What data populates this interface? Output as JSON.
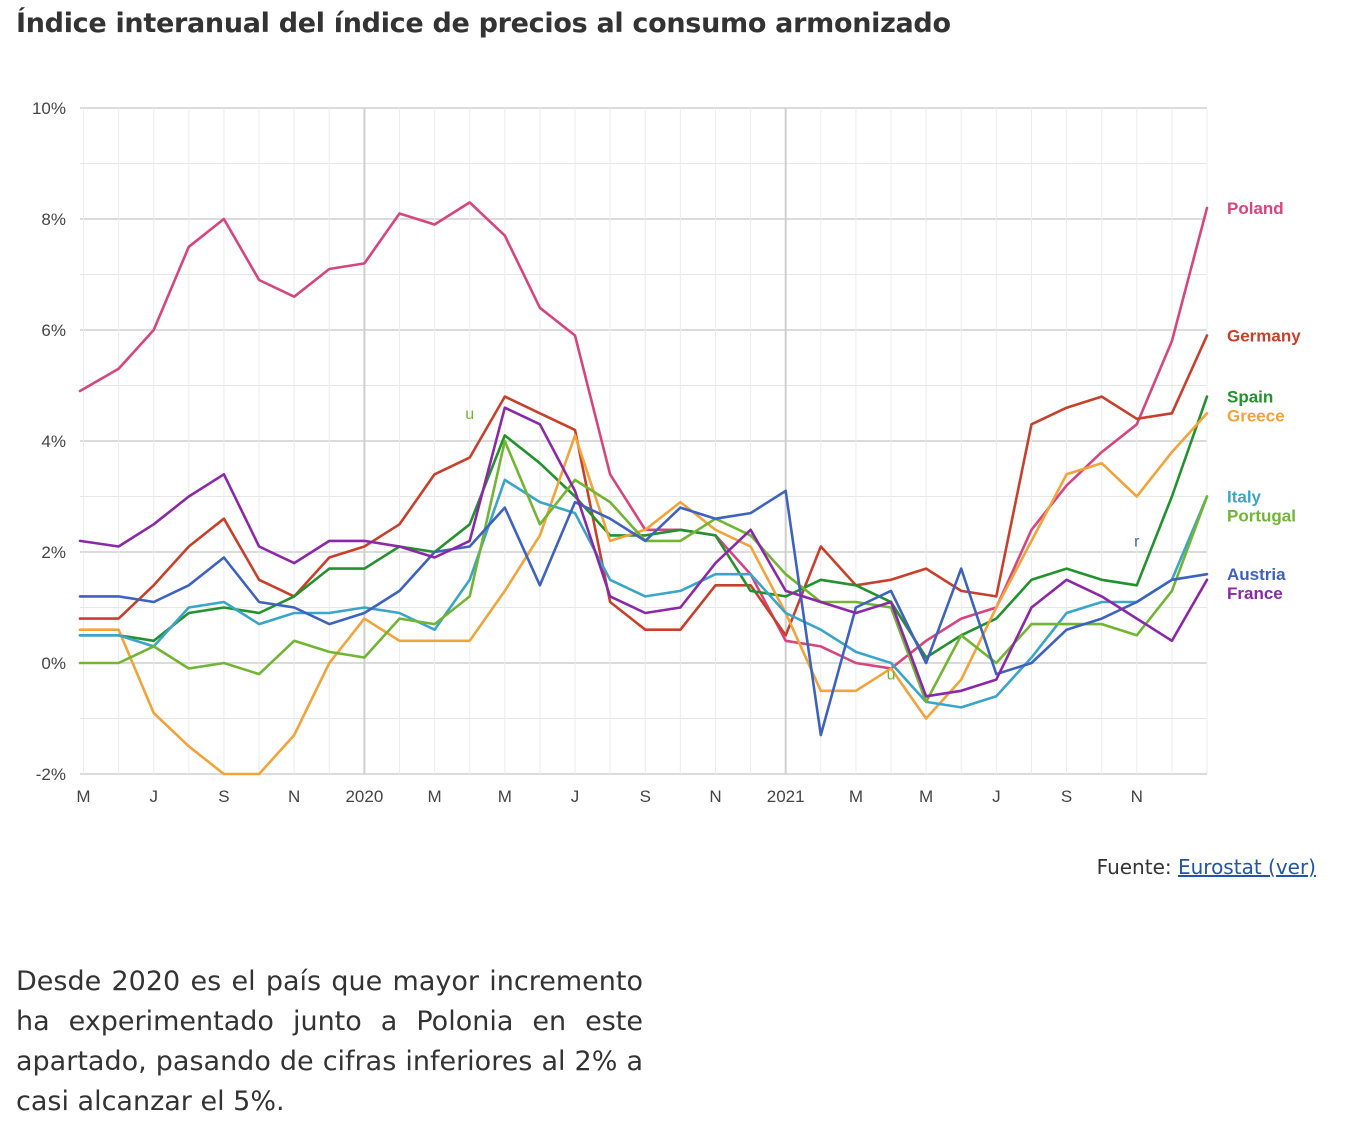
{
  "title": "Índice interanual del índice de precios al consumo armonizado",
  "source_label": "Fuente:",
  "source_link": "Eurostat (ver)",
  "body_text": "Desde 2020 es el país que mayor incremento ha experimentado junto a Polonia en este apartado, pasando de cifras inferiores al 2% a casi alcanzar el 5%.",
  "chart_data": {
    "type": "line",
    "title": "",
    "xlabel": "",
    "ylabel": "",
    "ylim": [
      -2,
      10
    ],
    "y_ticks": [
      -2,
      0,
      2,
      4,
      6,
      8,
      10
    ],
    "y_tick_format": "%",
    "grid": true,
    "legend_placement": "right, labels beside line ends",
    "x_tick_labels": [
      {
        "label": "M",
        "index": 0
      },
      {
        "label": "J",
        "index": 2
      },
      {
        "label": "S",
        "index": 4
      },
      {
        "label": "N",
        "index": 6
      },
      {
        "label": "2020",
        "index": 8
      },
      {
        "label": "M",
        "index": 10
      },
      {
        "label": "M",
        "index": 12
      },
      {
        "label": "J",
        "index": 14
      },
      {
        "label": "S",
        "index": 16
      },
      {
        "label": "N",
        "index": 18
      },
      {
        "label": "2021",
        "index": 20
      },
      {
        "label": "M",
        "index": 22
      },
      {
        "label": "M",
        "index": 24
      },
      {
        "label": "J",
        "index": 26
      },
      {
        "label": "S",
        "index": 28
      },
      {
        "label": "N",
        "index": 30
      }
    ],
    "x_start": -0.1,
    "series": [
      {
        "name": "Poland",
        "color": "#d6457f",
        "values": [
          4.9,
          5.3,
          6.0,
          7.5,
          8.0,
          6.9,
          6.6,
          7.1,
          7.2,
          8.1,
          7.9,
          8.3,
          7.7,
          6.4,
          5.9,
          3.4,
          2.4,
          2.4,
          2.3,
          1.6,
          0.4,
          0.3,
          0.0,
          -0.1,
          0.4,
          0.8,
          1.0,
          2.4,
          3.2,
          3.8,
          4.3,
          5.8,
          8.2
        ]
      },
      {
        "name": "Germany",
        "color": "#c8402b",
        "values": [
          0.8,
          0.8,
          1.4,
          2.1,
          2.6,
          1.5,
          1.2,
          1.9,
          2.1,
          2.5,
          3.4,
          3.7,
          4.8,
          4.5,
          4.2,
          1.1,
          0.6,
          0.6,
          1.4,
          1.4,
          0.5,
          2.1,
          1.4,
          1.5,
          1.7,
          1.3,
          1.2,
          4.3,
          4.6,
          4.8,
          4.4,
          4.5,
          5.9
        ]
      },
      {
        "name": "Spain",
        "color": "#23922e",
        "values": [
          0.5,
          0.5,
          0.4,
          0.9,
          1.0,
          0.9,
          1.2,
          1.7,
          1.7,
          2.1,
          2.0,
          2.5,
          4.1,
          3.6,
          3.0,
          2.3,
          2.3,
          2.4,
          2.3,
          1.3,
          1.2,
          1.5,
          1.4,
          1.1,
          0.1,
          0.5,
          0.8,
          1.5,
          1.7,
          1.5,
          1.4,
          3.0,
          4.8
        ]
      },
      {
        "name": "Greece",
        "color": "#f2a33a",
        "values": [
          0.6,
          0.6,
          -0.9,
          -1.5,
          -2.0,
          -2.0,
          -1.3,
          0.0,
          0.8,
          0.4,
          0.4,
          0.4,
          1.3,
          2.3,
          4.1,
          2.2,
          2.4,
          2.9,
          2.4,
          2.1,
          0.9,
          -0.5,
          -0.5,
          -0.1,
          -1.0,
          -0.3,
          1.0,
          2.2,
          3.4,
          3.6,
          3.0,
          3.8,
          4.5
        ]
      },
      {
        "name": "Italy",
        "color": "#3aa5c9",
        "values": [
          0.5,
          0.5,
          0.3,
          1.0,
          1.1,
          0.7,
          0.9,
          0.9,
          1.0,
          0.9,
          0.6,
          1.5,
          3.3,
          2.9,
          2.7,
          1.5,
          1.2,
          1.3,
          1.6,
          1.6,
          0.9,
          0.6,
          0.2,
          0.0,
          -0.7,
          -0.8,
          -0.6,
          0.1,
          0.9,
          1.1,
          1.1,
          1.5,
          3.0
        ]
      },
      {
        "name": "Portugal",
        "color": "#72b533",
        "values": [
          0.0,
          0.0,
          0.3,
          -0.1,
          0.0,
          -0.2,
          0.4,
          0.2,
          0.1,
          0.8,
          0.7,
          1.2,
          4.0,
          2.5,
          3.3,
          2.9,
          2.2,
          2.2,
          2.6,
          2.3,
          1.6,
          1.1,
          1.1,
          1.0,
          -0.7,
          0.5,
          0.0,
          0.7,
          0.7,
          0.7,
          0.5,
          1.3,
          3.0
        ]
      },
      {
        "name": "Austria",
        "color": "#3d62c0",
        "values": [
          1.2,
          1.2,
          1.1,
          1.4,
          1.9,
          1.1,
          1.0,
          0.7,
          0.9,
          1.3,
          2.0,
          2.1,
          2.8,
          1.4,
          2.9,
          2.6,
          2.2,
          2.8,
          2.6,
          2.7,
          3.1,
          -1.3,
          1.0,
          1.3,
          0.0,
          1.7,
          -0.2,
          0.0,
          0.6,
          0.8,
          1.1,
          1.5,
          1.6
        ]
      },
      {
        "name": "France",
        "color": "#8b28a8",
        "values": [
          2.2,
          2.1,
          2.5,
          3.0,
          3.4,
          2.1,
          1.8,
          2.2,
          2.2,
          2.1,
          1.9,
          2.2,
          4.6,
          4.3,
          3.1,
          1.2,
          0.9,
          1.0,
          1.8,
          2.4,
          1.3,
          1.1,
          0.9,
          1.1,
          -0.6,
          -0.5,
          -0.3,
          1.0,
          1.5,
          1.2,
          0.8,
          0.4,
          1.5
        ]
      }
    ],
    "annotations": [
      {
        "text": "u",
        "index": 11,
        "value": 4.4,
        "color": "#72b533"
      },
      {
        "text": "u",
        "index": 23,
        "value": -0.3,
        "color": "#72b533"
      },
      {
        "text": "r",
        "index": 30,
        "value": 2.1,
        "color": "#3d62c0"
      }
    ]
  }
}
